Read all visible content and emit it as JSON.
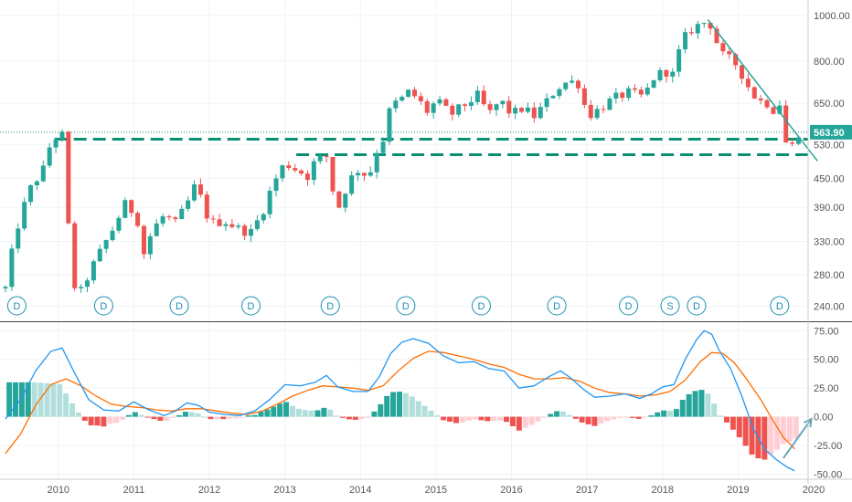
{
  "colors": {
    "up": "#26a69a",
    "down": "#ef5350",
    "hist_up_strong": "#26a69a",
    "hist_up_weak": "#b2dfdb",
    "hist_down_strong": "#ef5350",
    "hist_down_weak": "#ffcdd2",
    "macd_line": "#2196f3",
    "signal_line": "#ff6d00",
    "trendline": "#26a69a",
    "level_line": "#0b8f73",
    "last_price_bg": "#26a69a",
    "marker": "#1a8fb5",
    "arrow": "#6fa6b6"
  },
  "chart_data": [
    {
      "type": "candlestick",
      "scale": "log",
      "x_range": [
        2009.3,
        2020.0
      ],
      "ylim": [
        225,
        1060
      ],
      "y_ticks": [
        {
          "value": 240,
          "label": "240.00"
        },
        {
          "value": 280,
          "label": "280.00"
        },
        {
          "value": 330,
          "label": "330.00"
        },
        {
          "value": 390,
          "label": "390.00"
        },
        {
          "value": 450,
          "label": "450.00"
        },
        {
          "value": 530,
          "label": "530.00"
        },
        {
          "value": 650,
          "label": "650.00"
        },
        {
          "value": 800,
          "label": "800.00"
        },
        {
          "value": 1000,
          "label": "1000.00"
        }
      ],
      "x_ticks": [
        {
          "value": 2010,
          "label": "2010"
        },
        {
          "value": 2011,
          "label": "2011"
        },
        {
          "value": 2012,
          "label": "2012"
        },
        {
          "value": 2013,
          "label": "2013"
        },
        {
          "value": 2014,
          "label": "2014"
        },
        {
          "value": 2015,
          "label": "2015"
        },
        {
          "value": 2016,
          "label": "2016"
        },
        {
          "value": 2017,
          "label": "2017"
        },
        {
          "value": 2018,
          "label": "2018"
        },
        {
          "value": 2019,
          "label": "2019"
        },
        {
          "value": 2020,
          "label": "2020"
        }
      ],
      "last_price": {
        "value": 563.9,
        "label": "563.90"
      },
      "close_path": [
        [
          2009.3,
          262
        ],
        [
          2009.45,
          350
        ],
        [
          2009.62,
          425
        ],
        [
          2009.8,
          470
        ],
        [
          2009.92,
          548
        ],
        [
          2010.05,
          555
        ],
        [
          2010.1,
          525
        ],
        [
          2010.15,
          270
        ],
        [
          2010.3,
          258
        ],
        [
          2010.5,
          302
        ],
        [
          2010.7,
          345
        ],
        [
          2010.9,
          400
        ],
        [
          2011.05,
          365
        ],
        [
          2011.1,
          300
        ],
        [
          2011.25,
          350
        ],
        [
          2011.4,
          375
        ],
        [
          2011.55,
          360
        ],
        [
          2011.7,
          395
        ],
        [
          2011.8,
          430
        ],
        [
          2011.9,
          405
        ],
        [
          2012.0,
          360
        ],
        [
          2012.2,
          365
        ],
        [
          2012.4,
          350
        ],
        [
          2012.55,
          345
        ],
        [
          2012.7,
          380
        ],
        [
          2012.85,
          440
        ],
        [
          2013.0,
          485
        ],
        [
          2013.15,
          470
        ],
        [
          2013.3,
          455
        ],
        [
          2013.4,
          490
        ],
        [
          2013.55,
          500
        ],
        [
          2013.6,
          445
        ],
        [
          2013.7,
          385
        ],
        [
          2013.85,
          445
        ],
        [
          2014.0,
          475
        ],
        [
          2014.1,
          445
        ],
        [
          2014.2,
          510
        ],
        [
          2014.3,
          545
        ],
        [
          2014.4,
          640
        ],
        [
          2014.55,
          665
        ],
        [
          2014.65,
          690
        ],
        [
          2014.75,
          665
        ],
        [
          2014.9,
          620
        ],
        [
          2015.0,
          660
        ],
        [
          2015.2,
          615
        ],
        [
          2015.35,
          640
        ],
        [
          2015.55,
          675
        ],
        [
          2015.7,
          615
        ],
        [
          2015.85,
          660
        ],
        [
          2016.0,
          615
        ],
        [
          2016.15,
          635
        ],
        [
          2016.3,
          610
        ],
        [
          2016.45,
          650
        ],
        [
          2016.6,
          700
        ],
        [
          2016.75,
          725
        ],
        [
          2016.9,
          715
        ],
        [
          2017.0,
          610
        ],
        [
          2017.15,
          630
        ],
        [
          2017.35,
          665
        ],
        [
          2017.55,
          685
        ],
        [
          2017.75,
          670
        ],
        [
          2017.9,
          745
        ],
        [
          2018.05,
          760
        ],
        [
          2018.15,
          745
        ],
        [
          2018.25,
          880
        ],
        [
          2018.4,
          940
        ],
        [
          2018.6,
          975
        ],
        [
          2018.68,
          930
        ],
        [
          2018.75,
          830
        ],
        [
          2018.9,
          805
        ],
        [
          2019.0,
          780
        ],
        [
          2019.1,
          720
        ],
        [
          2019.25,
          660
        ],
        [
          2019.4,
          650
        ],
        [
          2019.5,
          620
        ],
        [
          2019.55,
          650
        ],
        [
          2019.6,
          545
        ],
        [
          2019.7,
          520
        ],
        [
          2019.8,
          564
        ]
      ],
      "trendline": {
        "from": [
          2018.6,
          980
        ],
        "to": [
          2020.05,
          490
        ]
      },
      "levels": [
        {
          "x0": 2009.95,
          "x1": 2020.0,
          "value": 545
        },
        {
          "x0": 2013.15,
          "x1": 2020.0,
          "value": 505
        }
      ],
      "event_markers": [
        {
          "x": 2009.45,
          "label": "D"
        },
        {
          "x": 2010.6,
          "label": "D"
        },
        {
          "x": 2011.6,
          "label": "D"
        },
        {
          "x": 2012.55,
          "label": "D"
        },
        {
          "x": 2013.6,
          "label": "D"
        },
        {
          "x": 2014.6,
          "label": "D"
        },
        {
          "x": 2015.6,
          "label": "D"
        },
        {
          "x": 2016.6,
          "label": "D"
        },
        {
          "x": 2017.55,
          "label": "D"
        },
        {
          "x": 2018.1,
          "label": "S"
        },
        {
          "x": 2018.45,
          "label": "D"
        },
        {
          "x": 2019.55,
          "label": "D"
        }
      ]
    },
    {
      "type": "macd",
      "ylim": [
        -52,
        80
      ],
      "y_ticks": [
        {
          "value": 75,
          "label": "75.00"
        },
        {
          "value": 50,
          "label": "50.00"
        },
        {
          "value": 25,
          "label": "25.00"
        },
        {
          "value": 0,
          "label": "0.00"
        },
        {
          "value": -25,
          "label": "-25.00"
        },
        {
          "value": -50,
          "label": "-50.00"
        }
      ],
      "macd_path": [
        [
          2009.3,
          -2
        ],
        [
          2009.5,
          15
        ],
        [
          2009.7,
          40
        ],
        [
          2009.9,
          57
        ],
        [
          2010.05,
          60
        ],
        [
          2010.2,
          40
        ],
        [
          2010.4,
          15
        ],
        [
          2010.6,
          6
        ],
        [
          2010.8,
          5
        ],
        [
          2011.0,
          13
        ],
        [
          2011.2,
          6
        ],
        [
          2011.4,
          1
        ],
        [
          2011.55,
          5
        ],
        [
          2011.7,
          12
        ],
        [
          2011.85,
          10
        ],
        [
          2012.0,
          4
        ],
        [
          2012.2,
          2
        ],
        [
          2012.4,
          1
        ],
        [
          2012.6,
          5
        ],
        [
          2012.8,
          15
        ],
        [
          2013.0,
          28
        ],
        [
          2013.2,
          27
        ],
        [
          2013.4,
          30
        ],
        [
          2013.55,
          36
        ],
        [
          2013.7,
          26
        ],
        [
          2013.9,
          22
        ],
        [
          2014.1,
          22
        ],
        [
          2014.25,
          35
        ],
        [
          2014.4,
          55
        ],
        [
          2014.55,
          65
        ],
        [
          2014.7,
          68
        ],
        [
          2014.9,
          64
        ],
        [
          2015.1,
          53
        ],
        [
          2015.3,
          47
        ],
        [
          2015.5,
          48
        ],
        [
          2015.7,
          42
        ],
        [
          2015.9,
          40
        ],
        [
          2016.1,
          25
        ],
        [
          2016.3,
          27
        ],
        [
          2016.5,
          35
        ],
        [
          2016.65,
          40
        ],
        [
          2016.8,
          33
        ],
        [
          2016.95,
          24
        ],
        [
          2017.1,
          17
        ],
        [
          2017.3,
          18
        ],
        [
          2017.5,
          20
        ],
        [
          2017.7,
          16
        ],
        [
          2017.85,
          20
        ],
        [
          2018.0,
          26
        ],
        [
          2018.15,
          28
        ],
        [
          2018.3,
          50
        ],
        [
          2018.45,
          67
        ],
        [
          2018.55,
          75
        ],
        [
          2018.65,
          72
        ],
        [
          2018.75,
          58
        ],
        [
          2018.9,
          42
        ],
        [
          2019.05,
          18
        ],
        [
          2019.2,
          -10
        ],
        [
          2019.35,
          -28
        ],
        [
          2019.5,
          -37
        ],
        [
          2019.65,
          -44
        ],
        [
          2019.75,
          -47
        ]
      ],
      "signal_path": [
        [
          2009.3,
          -32
        ],
        [
          2009.5,
          -15
        ],
        [
          2009.7,
          10
        ],
        [
          2009.9,
          28
        ],
        [
          2010.1,
          33
        ],
        [
          2010.3,
          27
        ],
        [
          2010.5,
          18
        ],
        [
          2010.7,
          11
        ],
        [
          2010.9,
          9
        ],
        [
          2011.1,
          8
        ],
        [
          2011.3,
          6
        ],
        [
          2011.5,
          5
        ],
        [
          2011.7,
          7
        ],
        [
          2011.9,
          7
        ],
        [
          2012.1,
          5
        ],
        [
          2012.3,
          3
        ],
        [
          2012.5,
          2
        ],
        [
          2012.7,
          5
        ],
        [
          2012.9,
          11
        ],
        [
          2013.1,
          18
        ],
        [
          2013.3,
          23
        ],
        [
          2013.5,
          27
        ],
        [
          2013.7,
          26
        ],
        [
          2013.9,
          25
        ],
        [
          2014.1,
          23
        ],
        [
          2014.3,
          27
        ],
        [
          2014.5,
          40
        ],
        [
          2014.7,
          51
        ],
        [
          2014.9,
          57
        ],
        [
          2015.1,
          56
        ],
        [
          2015.3,
          53
        ],
        [
          2015.5,
          50
        ],
        [
          2015.7,
          46
        ],
        [
          2015.9,
          43
        ],
        [
          2016.1,
          37
        ],
        [
          2016.3,
          33
        ],
        [
          2016.5,
          33
        ],
        [
          2016.7,
          34
        ],
        [
          2016.9,
          31
        ],
        [
          2017.1,
          25
        ],
        [
          2017.3,
          21
        ],
        [
          2017.5,
          20
        ],
        [
          2017.7,
          18
        ],
        [
          2017.9,
          19
        ],
        [
          2018.1,
          22
        ],
        [
          2018.3,
          32
        ],
        [
          2018.5,
          48
        ],
        [
          2018.65,
          56
        ],
        [
          2018.8,
          55
        ],
        [
          2018.95,
          47
        ],
        [
          2019.1,
          34
        ],
        [
          2019.3,
          15
        ],
        [
          2019.45,
          -2
        ],
        [
          2019.6,
          -18
        ],
        [
          2019.75,
          -28
        ]
      ],
      "arrow": {
        "from": [
          2019.6,
          -36
        ],
        "to": [
          2019.97,
          -2
        ]
      }
    }
  ]
}
